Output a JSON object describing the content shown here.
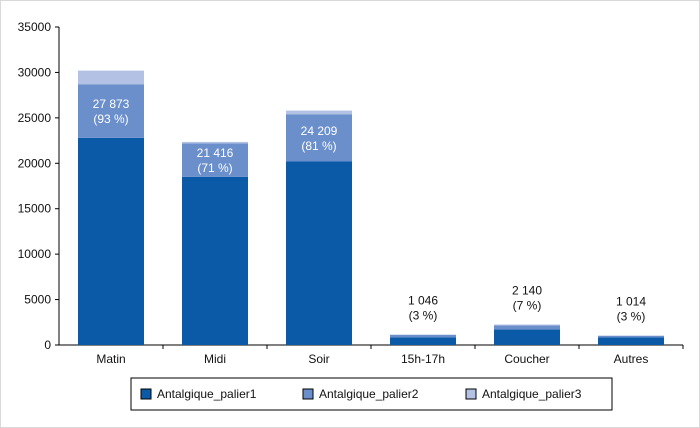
{
  "chart_data": {
    "type": "bar",
    "stacked": true,
    "categories": [
      "Matin",
      "Midi",
      "Soir",
      "15h-17h",
      "Coucher",
      "Autres"
    ],
    "series": [
      {
        "name": "Antalgique_palier1",
        "values": [
          22800,
          18500,
          20200,
          850,
          1700,
          850
        ]
      },
      {
        "name": "Antalgique_palier2",
        "values": [
          5900,
          3700,
          5200,
          250,
          450,
          150
        ]
      },
      {
        "name": "Antalgique_palier3",
        "values": [
          1500,
          150,
          400,
          50,
          100,
          50
        ]
      }
    ],
    "data_labels": [
      {
        "category_index": 0,
        "line1": "27 873",
        "line2": "(93 %)",
        "placement": "inside"
      },
      {
        "category_index": 1,
        "line1": "21 416",
        "line2": "(71 %)",
        "placement": "inside"
      },
      {
        "category_index": 2,
        "line1": "24 209",
        "line2": "(81 %)",
        "placement": "inside"
      },
      {
        "category_index": 3,
        "line1": "1 046",
        "line2": "(3 %)",
        "placement": "above"
      },
      {
        "category_index": 4,
        "line1": "2 140",
        "line2": "(7 %)",
        "placement": "above"
      },
      {
        "category_index": 5,
        "line1": "1 014",
        "line2": "(3 %)",
        "placement": "above"
      }
    ],
    "yticks": [
      0,
      5000,
      10000,
      15000,
      20000,
      25000,
      30000,
      35000
    ],
    "ylim": [
      0,
      35000
    ],
    "title": "",
    "xlabel": "",
    "ylabel": "",
    "grid": false,
    "legend_position": "bottom-center",
    "colors": {
      "Antalgique_palier1": "#0b5aa8",
      "Antalgique_palier2": "#6b8fcb",
      "Antalgique_palier3": "#b3c1e5",
      "axis": "#000000",
      "border": "#d9d9d9"
    }
  }
}
